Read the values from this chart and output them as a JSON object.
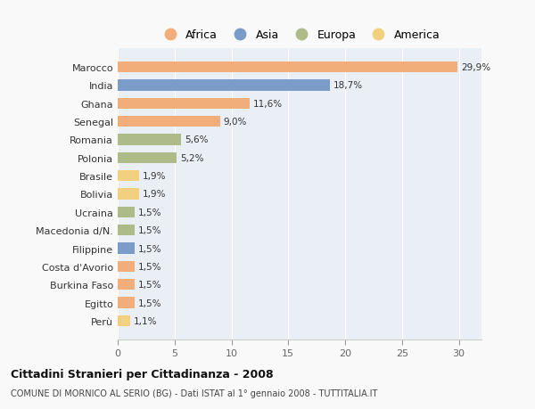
{
  "categories": [
    "Marocco",
    "India",
    "Ghana",
    "Senegal",
    "Romania",
    "Polonia",
    "Brasile",
    "Bolivia",
    "Ucraina",
    "Macedonia d/N.",
    "Filippine",
    "Costa d'Avorio",
    "Burkina Faso",
    "Egitto",
    "Perù"
  ],
  "values": [
    29.9,
    18.7,
    11.6,
    9.0,
    5.6,
    5.2,
    1.9,
    1.9,
    1.5,
    1.5,
    1.5,
    1.5,
    1.5,
    1.5,
    1.1
  ],
  "labels": [
    "29,9%",
    "18,7%",
    "11,6%",
    "9,0%",
    "5,6%",
    "5,2%",
    "1,9%",
    "1,9%",
    "1,5%",
    "1,5%",
    "1,5%",
    "1,5%",
    "1,5%",
    "1,5%",
    "1,1%"
  ],
  "continents": [
    "Africa",
    "Asia",
    "Africa",
    "Africa",
    "Europa",
    "Europa",
    "America",
    "America",
    "Europa",
    "Europa",
    "Asia",
    "Africa",
    "Africa",
    "Africa",
    "America"
  ],
  "colors": {
    "Africa": "#F2AE7A",
    "Asia": "#7B9BC8",
    "Europa": "#AEBB88",
    "America": "#F2D080"
  },
  "legend_order": [
    "Africa",
    "Asia",
    "Europa",
    "America"
  ],
  "title1": "Cittadini Stranieri per Cittadinanza - 2008",
  "title2": "COMUNE DI MORNICO AL SERIO (BG) - Dati ISTAT al 1° gennaio 2008 - TUTTITALIA.IT",
  "xlim": [
    0,
    32
  ],
  "xticks": [
    0,
    5,
    10,
    15,
    20,
    25,
    30
  ],
  "plot_bg": "#eaeef5",
  "fig_bg": "#f9f9f9"
}
